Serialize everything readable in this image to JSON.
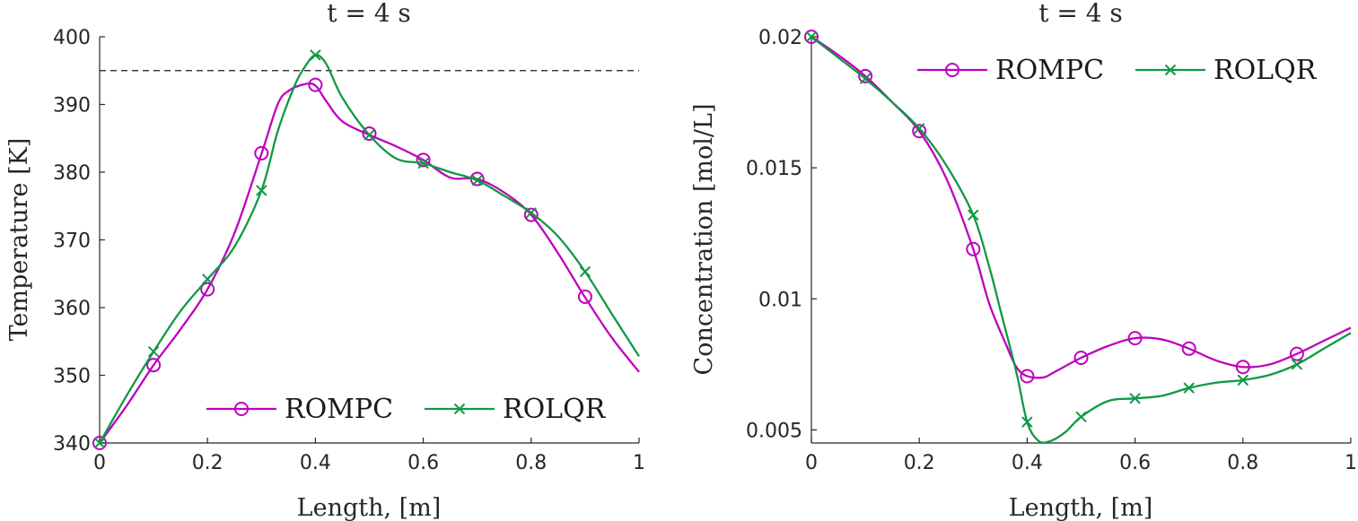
{
  "chart_data": [
    {
      "type": "line",
      "title": "t = 4 s",
      "xlabel": "Length, [m]",
      "ylabel": "Temperature [K]",
      "xlim": [
        0,
        1
      ],
      "ylim": [
        340,
        400
      ],
      "xticks": [
        "0",
        "0.2",
        "0.4",
        "0.6",
        "0.8",
        "1"
      ],
      "yticks": [
        "340",
        "350",
        "360",
        "370",
        "380",
        "390",
        "400"
      ],
      "reference_line": {
        "y": 395,
        "style": "dashed"
      },
      "legend_position": "bottom-right",
      "series": [
        {
          "name": "ROMPC",
          "color": "#bf00bf",
          "marker": "circle",
          "x": [
            0,
            0.05,
            0.1,
            0.15,
            0.2,
            0.25,
            0.3,
            0.33,
            0.35,
            0.38,
            0.4,
            0.42,
            0.45,
            0.5,
            0.55,
            0.6,
            0.65,
            0.7,
            0.75,
            0.8,
            0.85,
            0.9,
            0.95,
            1.0
          ],
          "y": [
            340,
            345.5,
            351.5,
            356.8,
            362.7,
            371,
            382.7,
            390,
            392,
            393,
            392.8,
            390.5,
            387.5,
            385.5,
            383.8,
            381.8,
            379.2,
            379,
            377,
            373.7,
            368,
            361.5,
            355.5,
            350.5
          ],
          "marker_x": [
            0,
            0.1,
            0.2,
            0.3,
            0.4,
            0.5,
            0.6,
            0.7,
            0.8,
            0.9
          ],
          "marker_y": [
            340,
            351.5,
            362.7,
            382.8,
            392.9,
            385.7,
            381.8,
            379,
            373.7,
            361.6
          ]
        },
        {
          "name": "ROLQR",
          "color": "#119944",
          "marker": "cross",
          "x": [
            0,
            0.05,
            0.1,
            0.15,
            0.2,
            0.25,
            0.3,
            0.33,
            0.36,
            0.38,
            0.4,
            0.42,
            0.45,
            0.5,
            0.55,
            0.6,
            0.65,
            0.7,
            0.75,
            0.8,
            0.85,
            0.9,
            0.95,
            1.0
          ],
          "y": [
            340,
            347,
            353.5,
            359.5,
            364.2,
            369,
            377.3,
            386,
            392.5,
            395.5,
            397.3,
            396,
            391,
            385.5,
            382,
            381.3,
            380,
            378.8,
            376.5,
            374,
            370.5,
            365.3,
            359,
            352.8
          ],
          "marker_x": [
            0,
            0.1,
            0.2,
            0.3,
            0.4,
            0.5,
            0.6,
            0.7,
            0.8,
            0.9
          ],
          "marker_y": [
            340,
            353.5,
            364.2,
            377.3,
            397.3,
            385.5,
            381.3,
            378.8,
            374,
            365.3
          ]
        }
      ]
    },
    {
      "type": "line",
      "title": "t = 4 s",
      "xlabel": "Length, [m]",
      "ylabel": "Concentration [mol/L]",
      "xlim": [
        0,
        1
      ],
      "ylim": [
        0.0045,
        0.02
      ],
      "xticks": [
        "0",
        "0.2",
        "0.4",
        "0.6",
        "0.8",
        "1"
      ],
      "yticks": [
        "0.005",
        "0.01",
        "0.015",
        "0.02"
      ],
      "legend_position": "top-right",
      "series": [
        {
          "name": "ROMPC",
          "color": "#bf00bf",
          "marker": "circle",
          "x": [
            0,
            0.05,
            0.1,
            0.15,
            0.2,
            0.25,
            0.3,
            0.33,
            0.36,
            0.38,
            0.4,
            0.43,
            0.45,
            0.5,
            0.55,
            0.6,
            0.65,
            0.7,
            0.75,
            0.8,
            0.85,
            0.9,
            0.95,
            1.0
          ],
          "y": [
            0.02,
            0.0193,
            0.0185,
            0.0175,
            0.0164,
            0.0146,
            0.0119,
            0.0098,
            0.0083,
            0.0074,
            0.00705,
            0.007,
            0.0072,
            0.00775,
            0.0082,
            0.0085,
            0.00845,
            0.0081,
            0.00765,
            0.0074,
            0.0075,
            0.0079,
            0.0084,
            0.0089
          ],
          "marker_x": [
            0,
            0.1,
            0.2,
            0.3,
            0.4,
            0.5,
            0.6,
            0.7,
            0.8,
            0.9
          ],
          "marker_y": [
            0.02,
            0.0185,
            0.0164,
            0.0119,
            0.00705,
            0.00775,
            0.0085,
            0.0081,
            0.0074,
            0.0079
          ]
        },
        {
          "name": "ROLQR",
          "color": "#119944",
          "marker": "cross",
          "x": [
            0,
            0.05,
            0.1,
            0.15,
            0.2,
            0.25,
            0.3,
            0.33,
            0.35,
            0.38,
            0.4,
            0.42,
            0.44,
            0.47,
            0.5,
            0.55,
            0.6,
            0.65,
            0.7,
            0.75,
            0.8,
            0.85,
            0.9,
            0.95,
            1.0
          ],
          "y": [
            0.02,
            0.0192,
            0.0184,
            0.0175,
            0.0165,
            0.0151,
            0.0132,
            0.0112,
            0.0096,
            0.0072,
            0.0053,
            0.0046,
            0.00455,
            0.0049,
            0.0055,
            0.0061,
            0.0062,
            0.0063,
            0.0066,
            0.0068,
            0.0069,
            0.0071,
            0.0075,
            0.0081,
            0.0087
          ],
          "marker_x": [
            0,
            0.1,
            0.2,
            0.3,
            0.4,
            0.5,
            0.6,
            0.7,
            0.8,
            0.9
          ],
          "marker_y": [
            0.02,
            0.0184,
            0.0165,
            0.0132,
            0.0053,
            0.0055,
            0.0062,
            0.0066,
            0.0069,
            0.0075
          ]
        }
      ]
    }
  ]
}
